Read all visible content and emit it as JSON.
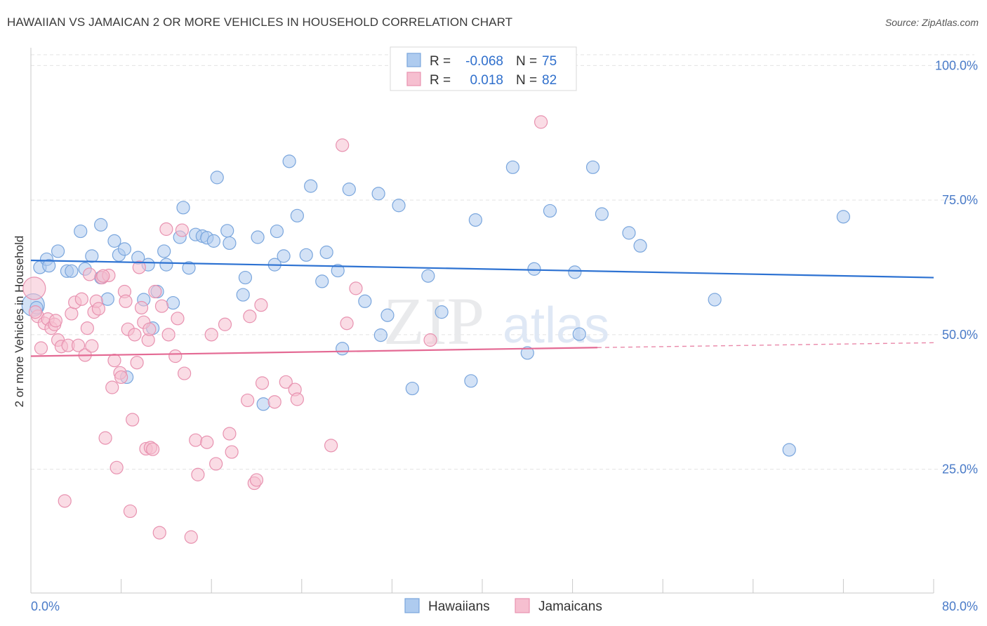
{
  "title": "HAWAIIAN VS JAMAICAN 2 OR MORE VEHICLES IN HOUSEHOLD CORRELATION CHART",
  "source": "Source: ZipAtlas.com",
  "watermark": {
    "zip": "ZIP",
    "atlas": "atlas"
  },
  "colors": {
    "blue_fill": "#aecbef",
    "blue_stroke": "#7aa6dd",
    "blue_line": "#2d72d2",
    "pink_fill": "#f6bfd0",
    "pink_stroke": "#e892b0",
    "pink_line": "#e46a94",
    "tick_text": "#4a7bc8",
    "grid": "#e3e3e3"
  },
  "legend": {
    "rows": [
      {
        "r_label": "R =",
        "r_value": "-0.068",
        "n_label": "N =",
        "n_value": "75"
      },
      {
        "r_label": "R =",
        "r_value": "0.018",
        "n_label": "N =",
        "n_value": "82"
      }
    ]
  },
  "bottom_legend": [
    "Hawaiians",
    "Jamaicans"
  ],
  "chart_data": {
    "type": "scatter",
    "title": "HAWAIIAN VS JAMAICAN 2 OR MORE VEHICLES IN HOUSEHOLD CORRELATION CHART",
    "xlabel": "",
    "ylabel": "2 or more Vehicles in Household",
    "xlim": [
      0,
      80
    ],
    "ylim": [
      2,
      102
    ],
    "x_tick_labels": [
      "0.0%",
      "80.0%"
    ],
    "y_ticks": [
      25,
      50,
      75,
      100
    ],
    "y_tick_labels": [
      "25.0%",
      "50.0%",
      "75.0%",
      "100.0%"
    ],
    "grid": "horizontal dashed",
    "legend_position": "top-center",
    "series": [
      {
        "name": "Hawaiians",
        "color": "#aecbef",
        "trend": {
          "x": [
            0,
            80
          ],
          "y": [
            63.8,
            60.6
          ]
        },
        "points": [
          [
            0.2,
            55.5
          ],
          [
            0.8,
            62.5
          ],
          [
            1.4,
            64.0
          ],
          [
            1.6,
            62.8
          ],
          [
            2.4,
            65.5
          ],
          [
            3.2,
            61.8
          ],
          [
            3.6,
            61.8
          ],
          [
            4.4,
            69.2
          ],
          [
            4.8,
            62.2
          ],
          [
            5.4,
            64.6
          ],
          [
            6.2,
            60.6
          ],
          [
            6.2,
            70.4
          ],
          [
            6.8,
            56.6
          ],
          [
            7.4,
            67.4
          ],
          [
            7.8,
            64.8
          ],
          [
            8.3,
            65.9
          ],
          [
            8.5,
            42.1
          ],
          [
            9.5,
            64.3
          ],
          [
            10.0,
            56.5
          ],
          [
            10.4,
            63.0
          ],
          [
            10.8,
            51.2
          ],
          [
            11.2,
            58.0
          ],
          [
            11.8,
            65.5
          ],
          [
            12.0,
            63.0
          ],
          [
            12.6,
            55.9
          ],
          [
            13.2,
            68.1
          ],
          [
            13.5,
            73.6
          ],
          [
            14.0,
            62.4
          ],
          [
            14.6,
            68.6
          ],
          [
            15.2,
            68.3
          ],
          [
            15.6,
            68.0
          ],
          [
            16.2,
            67.4
          ],
          [
            16.5,
            79.2
          ],
          [
            17.4,
            69.3
          ],
          [
            17.6,
            67.0
          ],
          [
            18.8,
            57.4
          ],
          [
            19.0,
            60.6
          ],
          [
            20.1,
            68.1
          ],
          [
            20.6,
            37.1
          ],
          [
            21.6,
            63.0
          ],
          [
            21.8,
            69.2
          ],
          [
            22.4,
            64.6
          ],
          [
            22.9,
            82.2
          ],
          [
            23.6,
            72.1
          ],
          [
            24.4,
            64.8
          ],
          [
            24.8,
            77.6
          ],
          [
            25.8,
            59.9
          ],
          [
            26.2,
            65.3
          ],
          [
            27.2,
            61.9
          ],
          [
            27.6,
            47.4
          ],
          [
            28.2,
            77.0
          ],
          [
            29.6,
            56.2
          ],
          [
            30.8,
            76.2
          ],
          [
            31.0,
            49.9
          ],
          [
            31.6,
            53.6
          ],
          [
            32.6,
            74.0
          ],
          [
            33.8,
            40.0
          ],
          [
            35.2,
            60.9
          ],
          [
            36.4,
            54.2
          ],
          [
            39.0,
            41.4
          ],
          [
            39.4,
            71.3
          ],
          [
            42.7,
            81.1
          ],
          [
            44.0,
            46.6
          ],
          [
            44.6,
            62.2
          ],
          [
            46.0,
            73.0
          ],
          [
            48.2,
            61.6
          ],
          [
            48.6,
            50.1
          ],
          [
            49.8,
            81.1
          ],
          [
            50.6,
            72.4
          ],
          [
            53.0,
            68.9
          ],
          [
            54.0,
            66.5
          ],
          [
            60.6,
            56.5
          ],
          [
            67.2,
            28.6
          ],
          [
            72.0,
            71.9
          ],
          [
            0.5,
            55.0
          ]
        ]
      },
      {
        "name": "Jamaicans",
        "color": "#f6bfd0",
        "trend": {
          "x": [
            0,
            50.2
          ],
          "y": [
            46.0,
            47.6
          ]
        },
        "trend_dashed": {
          "x": [
            50.2,
            80
          ],
          "y": [
            47.6,
            48.5
          ]
        },
        "points": [
          [
            0.3,
            58.6
          ],
          [
            0.6,
            53.4
          ],
          [
            0.9,
            47.5
          ],
          [
            1.2,
            52.1
          ],
          [
            1.5,
            52.9
          ],
          [
            1.8,
            51.2
          ],
          [
            2.1,
            51.9
          ],
          [
            2.4,
            49.0
          ],
          [
            2.7,
            47.8
          ],
          [
            3.0,
            19.1
          ],
          [
            3.3,
            48.0
          ],
          [
            3.6,
            53.9
          ],
          [
            3.9,
            56.0
          ],
          [
            4.2,
            48.0
          ],
          [
            4.5,
            56.6
          ],
          [
            4.8,
            46.2
          ],
          [
            5.0,
            51.2
          ],
          [
            5.2,
            61.2
          ],
          [
            5.4,
            47.9
          ],
          [
            5.6,
            54.2
          ],
          [
            5.8,
            56.2
          ],
          [
            6.0,
            54.8
          ],
          [
            6.3,
            60.6
          ],
          [
            6.6,
            30.8
          ],
          [
            6.9,
            61.0
          ],
          [
            7.2,
            40.2
          ],
          [
            7.4,
            45.2
          ],
          [
            7.6,
            25.3
          ],
          [
            7.9,
            42.9
          ],
          [
            8.0,
            42.1
          ],
          [
            8.3,
            58.0
          ],
          [
            8.4,
            56.2
          ],
          [
            8.6,
            51.0
          ],
          [
            8.8,
            17.2
          ],
          [
            9.0,
            34.2
          ],
          [
            9.2,
            50.0
          ],
          [
            9.4,
            44.8
          ],
          [
            9.6,
            62.5
          ],
          [
            9.8,
            55.0
          ],
          [
            10.0,
            52.3
          ],
          [
            10.2,
            28.8
          ],
          [
            10.4,
            49.0
          ],
          [
            10.5,
            51.0
          ],
          [
            10.6,
            29.0
          ],
          [
            10.8,
            28.7
          ],
          [
            11.0,
            58.0
          ],
          [
            11.4,
            13.2
          ],
          [
            11.6,
            55.3
          ],
          [
            12.0,
            69.6
          ],
          [
            12.2,
            50.0
          ],
          [
            12.8,
            46.0
          ],
          [
            13.0,
            53.0
          ],
          [
            13.4,
            69.4
          ],
          [
            13.6,
            42.8
          ],
          [
            14.2,
            12.4
          ],
          [
            14.6,
            30.4
          ],
          [
            14.8,
            24.0
          ],
          [
            15.6,
            30.0
          ],
          [
            16.0,
            50.0
          ],
          [
            16.4,
            26.0
          ],
          [
            17.2,
            51.9
          ],
          [
            17.6,
            31.6
          ],
          [
            17.8,
            28.2
          ],
          [
            19.2,
            37.8
          ],
          [
            19.4,
            53.4
          ],
          [
            19.8,
            22.4
          ],
          [
            20.0,
            23.0
          ],
          [
            20.4,
            55.5
          ],
          [
            20.5,
            41.0
          ],
          [
            21.6,
            37.5
          ],
          [
            22.6,
            41.2
          ],
          [
            23.4,
            39.8
          ],
          [
            23.6,
            38.0
          ],
          [
            26.6,
            29.4
          ],
          [
            27.6,
            85.2
          ],
          [
            28.0,
            52.1
          ],
          [
            28.8,
            58.6
          ],
          [
            35.4,
            49.0
          ],
          [
            45.2,
            89.5
          ],
          [
            0.4,
            54.2
          ],
          [
            2.2,
            52.6
          ],
          [
            6.4,
            60.9
          ]
        ]
      }
    ]
  }
}
